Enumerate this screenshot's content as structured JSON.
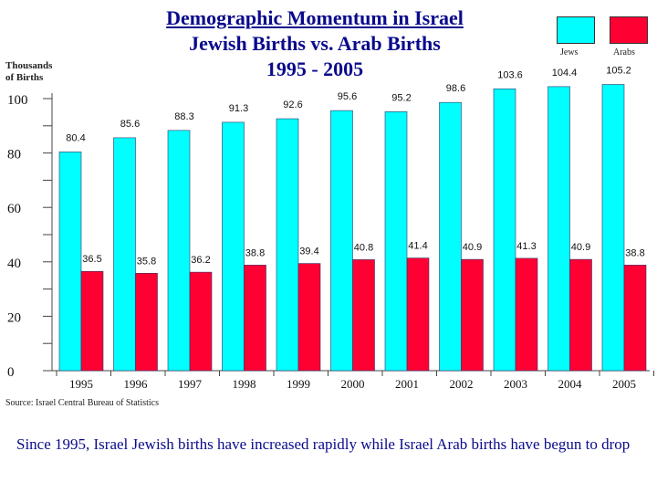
{
  "title_line1": "Demographic Momentum in Israel",
  "title_line2": "Jewish Births vs. Arab Births",
  "title_line3": "1995 - 2005",
  "source": "Source: Israel Central Bureau of Statistics",
  "caption": "Since 1995, Israel Jewish births have increased rapidly while Israel Arab births have begun to drop",
  "colors": {
    "jews": "#00ffff",
    "arabs": "#ff0033",
    "title": "#0a0a8c"
  },
  "chart_data": {
    "type": "bar",
    "title": "Demographic Momentum in Israel Jewish Births vs. Arab Births 1995 - 2005",
    "ylabel_line1": "Thousands",
    "ylabel_line2": "of Births",
    "xlabel": "",
    "categories": [
      "1995",
      "1996",
      "1997",
      "1998",
      "1999",
      "2000",
      "2001",
      "2002",
      "2003",
      "2004",
      "2005"
    ],
    "series": [
      {
        "name": "Jews",
        "values": [
          80.4,
          85.6,
          88.3,
          91.3,
          92.6,
          95.6,
          95.2,
          98.6,
          103.6,
          104.4,
          105.2
        ]
      },
      {
        "name": "Arabs",
        "values": [
          36.5,
          35.8,
          36.2,
          38.8,
          39.4,
          40.8,
          41.4,
          40.9,
          41.3,
          40.9,
          38.8
        ]
      }
    ],
    "ylim": [
      0,
      100
    ],
    "yticks": [
      0,
      20,
      40,
      60,
      80,
      100
    ],
    "grid": false,
    "legend_position": "top-right"
  }
}
